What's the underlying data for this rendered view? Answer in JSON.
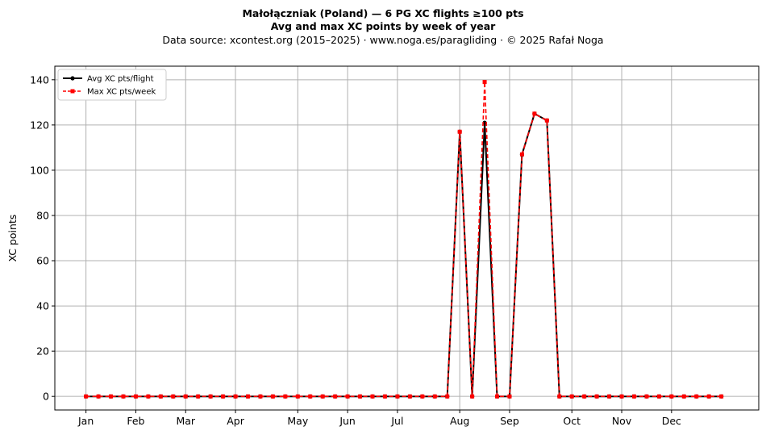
{
  "header": {
    "title_line1": "Małołączniak (Poland)  —  6 PG XC flights ≥100 pts",
    "title_line2": "Avg and max XC points by week of year",
    "source_line": "Data source: xcontest.org (2015–2025)  ·  www.noga.es/paragliding  ·  © 2025 Rafał Noga"
  },
  "chart_data": {
    "type": "line",
    "ylabel": "XC points",
    "xlabel": "",
    "ylim": [
      -6,
      146
    ],
    "xlim": [
      -2.5,
      54
    ],
    "grid": true,
    "legend_position": "top-left",
    "x_ticks": [
      {
        "week": 0,
        "label": "Jan"
      },
      {
        "week": 4,
        "label": "Feb"
      },
      {
        "week": 8,
        "label": "Mar"
      },
      {
        "week": 12,
        "label": "Apr"
      },
      {
        "week": 17,
        "label": "May"
      },
      {
        "week": 21,
        "label": "Jun"
      },
      {
        "week": 25,
        "label": "Jul"
      },
      {
        "week": 30,
        "label": "Aug"
      },
      {
        "week": 34,
        "label": "Sep"
      },
      {
        "week": 39,
        "label": "Oct"
      },
      {
        "week": 43,
        "label": "Nov"
      },
      {
        "week": 47,
        "label": "Dec"
      }
    ],
    "y_ticks": [
      0,
      20,
      40,
      60,
      80,
      100,
      120,
      140
    ],
    "x": [
      0,
      1,
      2,
      3,
      4,
      5,
      6,
      7,
      8,
      9,
      10,
      11,
      12,
      13,
      14,
      15,
      16,
      17,
      18,
      19,
      20,
      21,
      22,
      23,
      24,
      25,
      26,
      27,
      28,
      29,
      30,
      31,
      32,
      33,
      34,
      35,
      36,
      37,
      38,
      39,
      40,
      41,
      42,
      43,
      44,
      45,
      46,
      47,
      48,
      49,
      50,
      51
    ],
    "series": [
      {
        "name": "Avg XC pts/flight",
        "color": "#000000",
        "style": "solid",
        "marker": "circle",
        "values": [
          0,
          0,
          0,
          0,
          0,
          0,
          0,
          0,
          0,
          0,
          0,
          0,
          0,
          0,
          0,
          0,
          0,
          0,
          0,
          0,
          0,
          0,
          0,
          0,
          0,
          0,
          0,
          0,
          0,
          0,
          117,
          0,
          121,
          0,
          0,
          107,
          125,
          122,
          0,
          0,
          0,
          0,
          0,
          0,
          0,
          0,
          0,
          0,
          0,
          0,
          0,
          0
        ]
      },
      {
        "name": "Max XC pts/week",
        "color": "#ff0000",
        "style": "dashed",
        "marker": "square",
        "values": [
          0,
          0,
          0,
          0,
          0,
          0,
          0,
          0,
          0,
          0,
          0,
          0,
          0,
          0,
          0,
          0,
          0,
          0,
          0,
          0,
          0,
          0,
          0,
          0,
          0,
          0,
          0,
          0,
          0,
          0,
          117,
          0,
          139,
          0,
          0,
          107,
          125,
          122,
          0,
          0,
          0,
          0,
          0,
          0,
          0,
          0,
          0,
          0,
          0,
          0,
          0,
          0
        ]
      }
    ]
  }
}
